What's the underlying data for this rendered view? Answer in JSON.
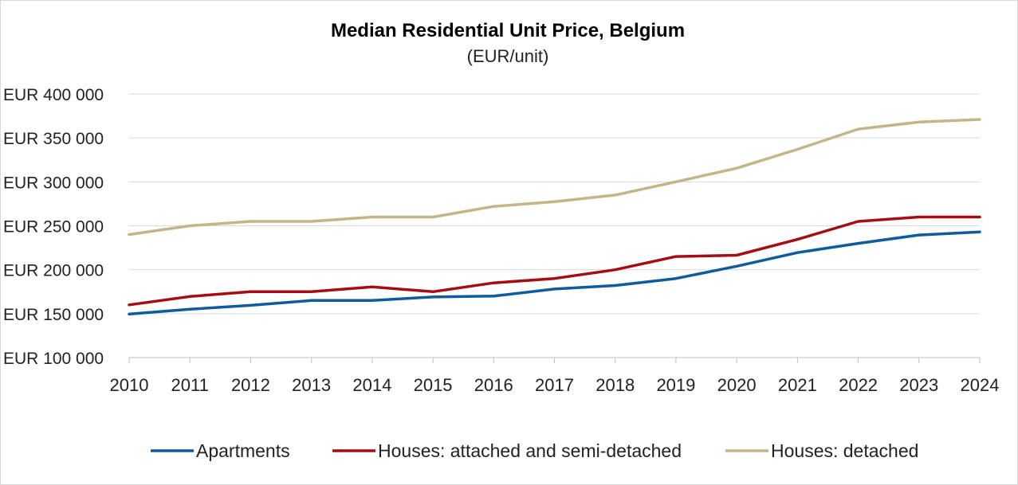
{
  "chart_data": {
    "type": "line",
    "title": "Median Residential Unit Price, Belgium",
    "subtitle": "(EUR/unit)",
    "xlabel": "",
    "ylabel": "",
    "x": [
      "2010",
      "2011",
      "2012",
      "2013",
      "2014",
      "2015",
      "2016",
      "2017",
      "2018",
      "2019",
      "2020",
      "2021",
      "2022",
      "2023",
      "2024"
    ],
    "ylim": [
      100000,
      400000
    ],
    "yticks": [
      100000,
      150000,
      200000,
      250000,
      300000,
      350000,
      400000
    ],
    "ytick_labels": [
      "EUR 100 000",
      "EUR 150 000",
      "EUR 200 000",
      "EUR 250 000",
      "EUR 300 000",
      "EUR 350 000",
      "EUR 400 000"
    ],
    "grid": true,
    "legend_position": "bottom",
    "series": [
      {
        "name": "Apartments",
        "color": "#0e5c9e",
        "values": [
          149500,
          155000,
          159500,
          165000,
          165000,
          169000,
          170000,
          178000,
          182000,
          190000,
          204000,
          219500,
          230000,
          239500,
          243000
        ]
      },
      {
        "name": "Houses: attached and semi-detached",
        "color": "#a50d12",
        "values": [
          160000,
          169500,
          175000,
          175000,
          180500,
          175000,
          185000,
          190000,
          200000,
          215000,
          216500,
          234500,
          255000,
          260000,
          260000
        ]
      },
      {
        "name": "Houses: detached",
        "color": "#c4b588",
        "values": [
          240000,
          250000,
          255000,
          255000,
          260000,
          260000,
          272000,
          277500,
          285000,
          300000,
          315500,
          337000,
          360000,
          368000,
          371000
        ]
      }
    ]
  }
}
